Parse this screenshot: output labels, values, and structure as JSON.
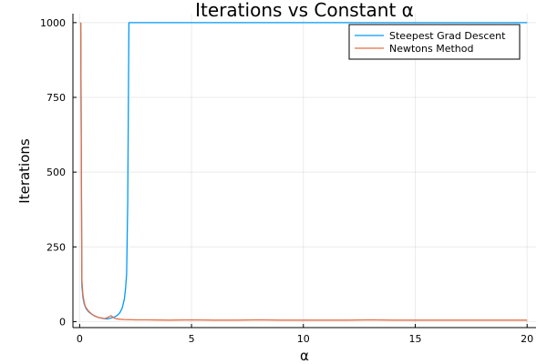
{
  "chart_data": {
    "type": "line",
    "title": "Iterations vs Constant α",
    "xlabel": "α",
    "ylabel": "Iterations",
    "xlim": [
      -0.3,
      20.4
    ],
    "ylim": [
      -20,
      1030
    ],
    "xticks": [
      0,
      5,
      10,
      15,
      20
    ],
    "yticks": [
      0,
      250,
      500,
      750,
      1000
    ],
    "grid": true,
    "legend_position": "top-right",
    "series": [
      {
        "name": "Steepest Grad Descent",
        "color": "#009AFA",
        "x": [
          0.05,
          0.1,
          0.15,
          0.2,
          0.25,
          0.3,
          0.4,
          0.5,
          0.6,
          0.7,
          0.8,
          0.9,
          1.0,
          1.1,
          1.2,
          1.3,
          1.4,
          1.5,
          1.6,
          1.7,
          1.8,
          1.9,
          2.0,
          2.05,
          2.1,
          2.15,
          2.2,
          2.3,
          2.5,
          3,
          5,
          10,
          15,
          20
        ],
        "y": [
          1000,
          120,
          80,
          60,
          50,
          42,
          33,
          27,
          22,
          18,
          15,
          13,
          11,
          10,
          9,
          10,
          12,
          14,
          17,
          22,
          30,
          45,
          75,
          110,
          160,
          400,
          1000,
          1000,
          1000,
          1000,
          1000,
          1000,
          1000,
          1000
        ]
      },
      {
        "name": "Newtons Method",
        "color": "#E36F47",
        "x": [
          0.05,
          0.1,
          0.15,
          0.2,
          0.25,
          0.3,
          0.4,
          0.5,
          0.6,
          0.7,
          0.8,
          0.9,
          1.0,
          1.1,
          1.2,
          1.3,
          1.4,
          1.5,
          1.6,
          1.8,
          2.0,
          2.5,
          3,
          4,
          5,
          6,
          7,
          8,
          9,
          10,
          11,
          12,
          13,
          14,
          15,
          16,
          17,
          18,
          19,
          20
        ],
        "y": [
          1000,
          140,
          90,
          65,
          52,
          45,
          35,
          28,
          22,
          18,
          15,
          13,
          12,
          10,
          12,
          16,
          20,
          14,
          10,
          8,
          7,
          6,
          6,
          5,
          6,
          5,
          5,
          6,
          5,
          5,
          5,
          5,
          6,
          5,
          5,
          5,
          5,
          5,
          5,
          5
        ]
      }
    ]
  }
}
